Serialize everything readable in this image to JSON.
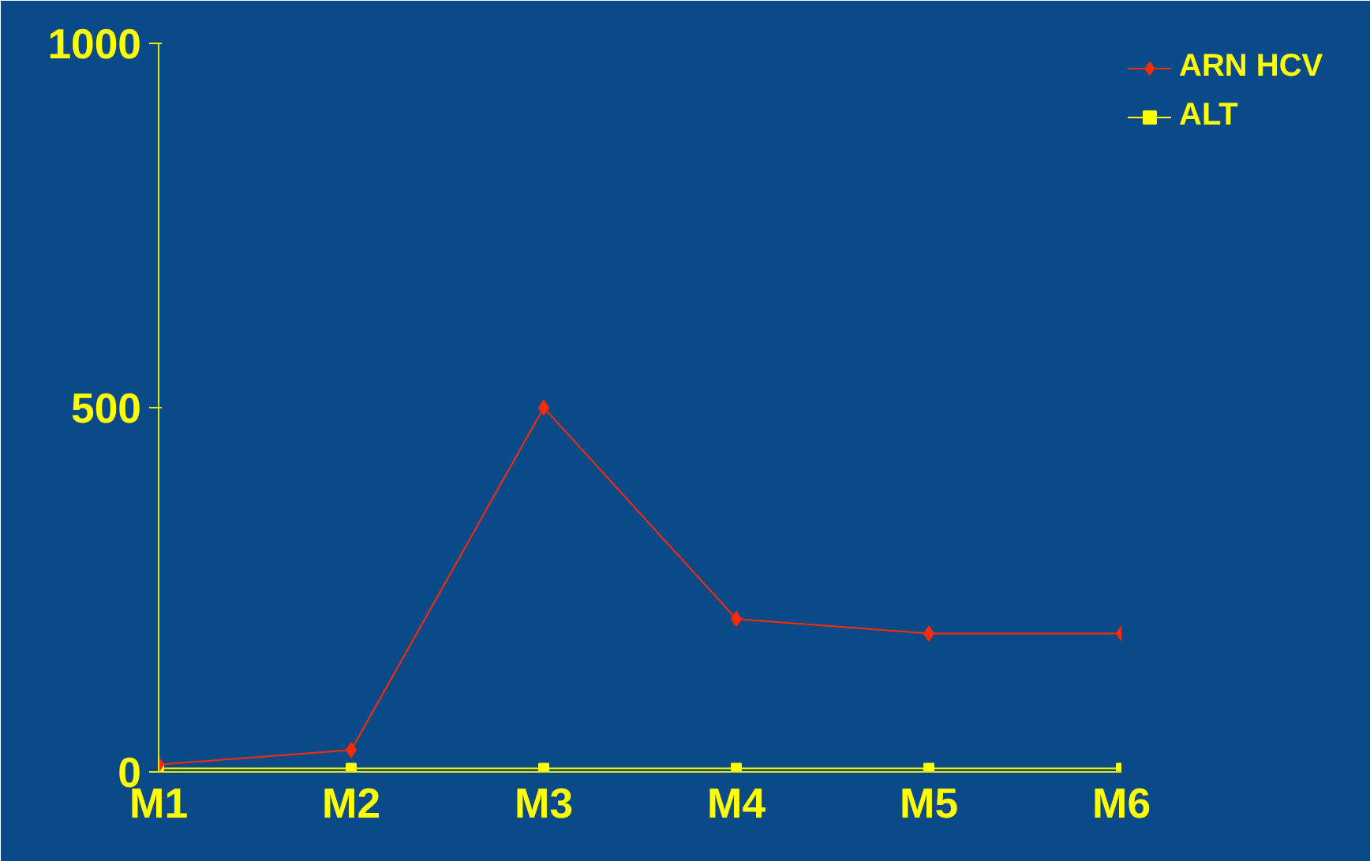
{
  "chart_data": {
    "type": "line",
    "categories": [
      "M1",
      "M2",
      "M3",
      "M4",
      "M5",
      "M6"
    ],
    "series": [
      {
        "name": "ARN HCV",
        "color": "#ff2a00",
        "values": [
          10,
          30,
          500,
          210,
          190,
          190
        ],
        "marker": "diamond"
      },
      {
        "name": "ALT",
        "color": "#ffff00",
        "values": [
          5,
          5,
          5,
          5,
          5,
          5
        ],
        "marker": "square"
      }
    ],
    "ylim": [
      0,
      1000
    ],
    "yticks": [
      0,
      500,
      1000
    ],
    "grid": false,
    "legend": "top right",
    "line_style": "solid"
  }
}
